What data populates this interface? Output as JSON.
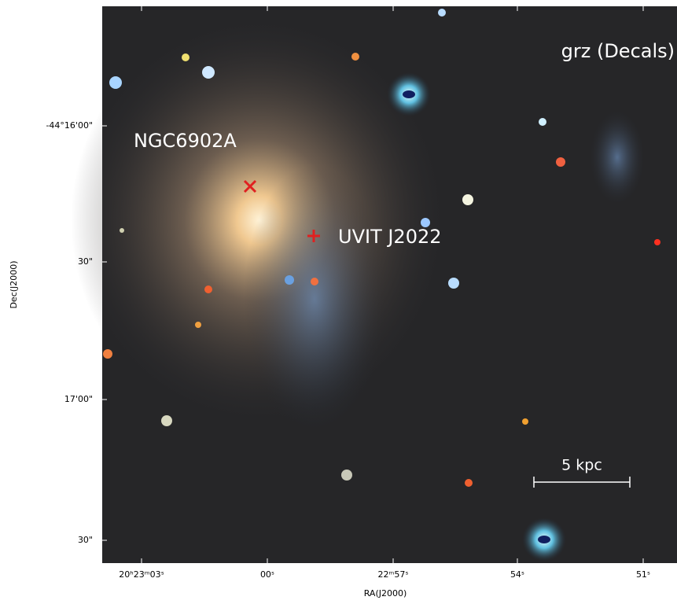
{
  "image": {
    "band_label": "grz (Decals)",
    "galaxy_label": "NGC6902A",
    "source_label": "UVIT J2022",
    "scale_bar_label": "5 kpc"
  },
  "x_axis": {
    "label": "RA(J2000)",
    "ticks": [
      "20ʰ23ᵐ03ˢ",
      "00ˢ",
      "22ᵐ57ˢ",
      "54ˢ",
      "51ˢ"
    ]
  },
  "y_axis": {
    "label": "Dec(J2000)",
    "ticks": [
      "-44°16'00\"",
      "30\"",
      "17'00\"",
      "30\""
    ]
  }
}
